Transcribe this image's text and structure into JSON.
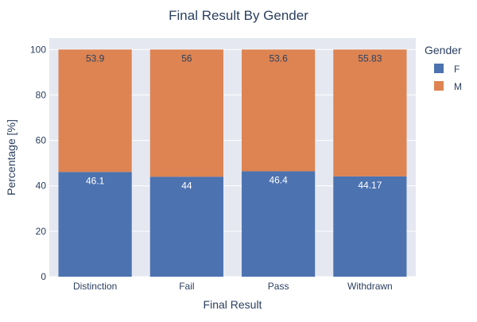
{
  "chart_data": {
    "type": "bar",
    "stacked": true,
    "title": "Final Result By Gender",
    "xlabel": "Final Result",
    "ylabel": "Percentage [%]",
    "categories": [
      "Distinction",
      "Fail",
      "Pass",
      "Withdrawn"
    ],
    "ylim": [
      0,
      105
    ],
    "yticks": [
      0,
      20,
      40,
      60,
      80,
      100
    ],
    "series": [
      {
        "name": "F",
        "values": [
          46.1,
          44,
          46.4,
          44.17
        ],
        "labels": [
          "46.1",
          "44",
          "46.4",
          "44.17"
        ],
        "color": "#4c72b0"
      },
      {
        "name": "M",
        "values": [
          53.9,
          56,
          53.6,
          55.83
        ],
        "labels": [
          "53.9",
          "56",
          "53.6",
          "55.83"
        ],
        "color": "#dd8452"
      }
    ],
    "legend": {
      "title": "Gender",
      "placement": "top-right"
    },
    "grid": true,
    "plot_background": "#e5e8f1"
  }
}
